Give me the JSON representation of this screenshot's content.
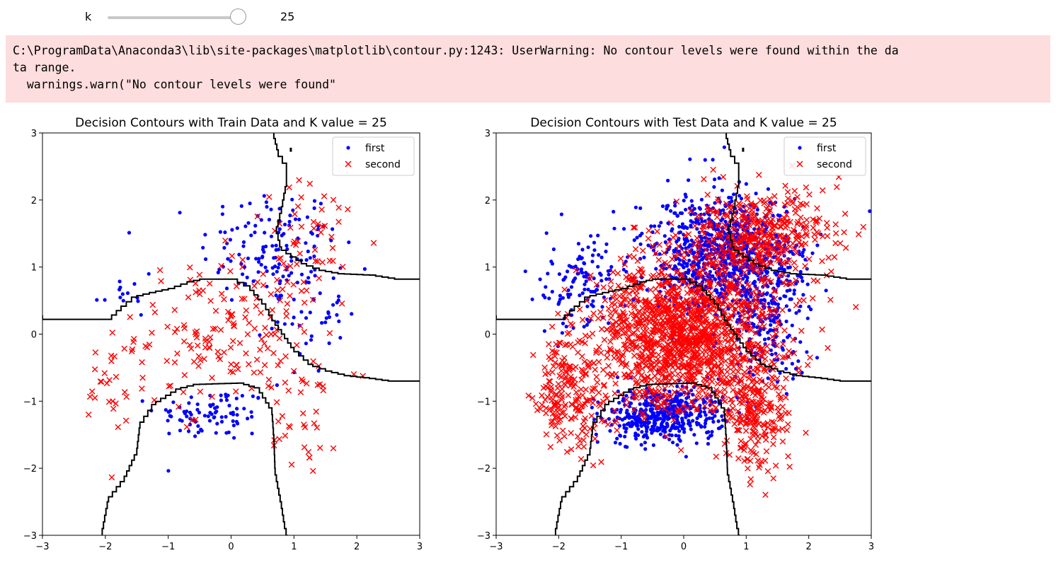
{
  "widget": {
    "label": "k",
    "value": "25",
    "slider_fraction": 1.0
  },
  "stderr": {
    "lines": [
      "C:\\ProgramData\\Anaconda3\\lib\\site-packages\\matplotlib\\contour.py:1243: UserWarning: No contour levels were found within the da",
      "ta range.",
      "  warnings.warn(\"No contour levels were found\""
    ]
  },
  "colors": {
    "first": "#0000ff",
    "second": "#ff0000",
    "contour": "#000000",
    "stderr_bg": "#fddddd"
  },
  "chart_data": [
    {
      "type": "scatter",
      "title": "Decision Contours with Train Data and K value = 25",
      "xlim": [
        -3,
        3
      ],
      "ylim": [
        -3,
        3
      ],
      "xticks": [
        "−3",
        "−2",
        "−1",
        "0",
        "1",
        "2",
        "3"
      ],
      "yticks": [
        "−3",
        "−2",
        "−1",
        "0",
        "1",
        "2",
        "3"
      ],
      "legend_position": "top-right",
      "series": [
        {
          "name": "first",
          "marker": "dot",
          "clusters": [
            {
              "cx": 0.6,
              "cy": 1.3,
              "sx": 0.55,
              "sy": 0.45,
              "n": 120
            },
            {
              "cx": -0.3,
              "cy": -1.2,
              "sx": 0.45,
              "sy": 0.2,
              "n": 85
            },
            {
              "cx": 1.2,
              "cy": 0.4,
              "sx": 0.3,
              "sy": 0.5,
              "n": 55
            },
            {
              "cx": -1.7,
              "cy": 0.6,
              "sx": 0.25,
              "sy": 0.3,
              "n": 14
            }
          ]
        },
        {
          "name": "second",
          "marker": "x",
          "clusters": [
            {
              "cx": 0.0,
              "cy": 0.0,
              "sx": 0.75,
              "sy": 0.55,
              "n": 175
            },
            {
              "cx": 1.3,
              "cy": 1.45,
              "sx": 0.55,
              "sy": 0.4,
              "n": 45
            },
            {
              "cx": -1.9,
              "cy": -0.9,
              "sx": 0.25,
              "sy": 0.45,
              "n": 25
            },
            {
              "cx": 1.2,
              "cy": -1.2,
              "sx": 0.25,
              "sy": 0.45,
              "n": 30
            }
          ]
        }
      ],
      "contours": [
        [
          [
            -3,
            0.28
          ],
          [
            -2.9,
            0.22
          ],
          [
            -1.9,
            0.22
          ],
          [
            -1.75,
            0.35
          ],
          [
            -1.5,
            0.55
          ],
          [
            -1.2,
            0.62
          ],
          [
            -0.9,
            0.68
          ],
          [
            -0.6,
            0.78
          ],
          [
            -0.4,
            0.82
          ],
          [
            0.1,
            0.82
          ],
          [
            0.3,
            0.72
          ],
          [
            0.55,
            0.45
          ],
          [
            0.7,
            0.2
          ],
          [
            0.85,
            0.0
          ],
          [
            1.0,
            -0.2
          ],
          [
            1.3,
            -0.45
          ],
          [
            1.6,
            -0.55
          ],
          [
            1.9,
            -0.62
          ],
          [
            2.2,
            -0.65
          ],
          [
            2.6,
            -0.7
          ],
          [
            3,
            -0.7
          ]
        ],
        [
          [
            -2.05,
            -3
          ],
          [
            -1.95,
            -2.5
          ],
          [
            -1.7,
            -2.2
          ],
          [
            -1.5,
            -1.8
          ],
          [
            -1.45,
            -1.4
          ],
          [
            -1.2,
            -1.05
          ],
          [
            -0.8,
            -0.82
          ],
          [
            -0.5,
            -0.75
          ],
          [
            0.2,
            -0.73
          ],
          [
            0.45,
            -0.8
          ],
          [
            0.55,
            -0.95
          ],
          [
            0.65,
            -1.1
          ],
          [
            0.68,
            -1.5
          ],
          [
            0.7,
            -2.0
          ],
          [
            0.8,
            -2.5
          ],
          [
            0.85,
            -2.8
          ],
          [
            0.9,
            -3
          ]
        ],
        [
          [
            0.68,
            3
          ],
          [
            0.75,
            2.75
          ],
          [
            0.88,
            2.55
          ],
          [
            0.88,
            2.3
          ],
          [
            0.8,
            1.9
          ],
          [
            0.72,
            1.6
          ],
          [
            0.8,
            1.3
          ],
          [
            0.95,
            1.2
          ],
          [
            1.2,
            1.05
          ],
          [
            1.5,
            0.95
          ],
          [
            1.8,
            0.9
          ],
          [
            2.3,
            0.88
          ],
          [
            2.7,
            0.82
          ],
          [
            3,
            0.82
          ]
        ],
        [
          [
            0.95,
            2.78
          ],
          [
            0.95,
            2.72
          ]
        ]
      ]
    },
    {
      "type": "scatter",
      "title": "Decision Contours with Test Data and K value = 25",
      "xlim": [
        -3,
        3
      ],
      "ylim": [
        -3,
        3
      ],
      "xticks": [
        "−3",
        "−2",
        "−1",
        "0",
        "1",
        "2",
        "3"
      ],
      "yticks": [
        "−3",
        "−2",
        "−1",
        "0",
        "1",
        "2",
        "3"
      ],
      "legend_position": "top-right",
      "series": [
        {
          "name": "first",
          "marker": "dot",
          "clusters": [
            {
              "cx": 0.55,
              "cy": 1.2,
              "sx": 0.6,
              "sy": 0.45,
              "n": 850
            },
            {
              "cx": -0.3,
              "cy": -1.2,
              "sx": 0.45,
              "sy": 0.2,
              "n": 500
            },
            {
              "cx": 1.3,
              "cy": 0.3,
              "sx": 0.35,
              "sy": 0.55,
              "n": 250
            },
            {
              "cx": -1.6,
              "cy": 0.7,
              "sx": 0.35,
              "sy": 0.35,
              "n": 120
            }
          ]
        },
        {
          "name": "second",
          "marker": "x",
          "clusters": [
            {
              "cx": 0.0,
              "cy": 0.0,
              "sx": 0.75,
              "sy": 0.55,
              "n": 1400
            },
            {
              "cx": 1.2,
              "cy": 1.45,
              "sx": 0.6,
              "sy": 0.35,
              "n": 400
            },
            {
              "cx": -1.85,
              "cy": -0.9,
              "sx": 0.25,
              "sy": 0.45,
              "n": 180
            },
            {
              "cx": 1.15,
              "cy": -1.2,
              "sx": 0.25,
              "sy": 0.45,
              "n": 220
            }
          ]
        }
      ],
      "contours": [
        [
          [
            -3,
            0.28
          ],
          [
            -2.9,
            0.22
          ],
          [
            -1.9,
            0.22
          ],
          [
            -1.75,
            0.35
          ],
          [
            -1.5,
            0.55
          ],
          [
            -1.2,
            0.62
          ],
          [
            -0.9,
            0.68
          ],
          [
            -0.6,
            0.78
          ],
          [
            -0.4,
            0.82
          ],
          [
            0.1,
            0.82
          ],
          [
            0.3,
            0.72
          ],
          [
            0.55,
            0.45
          ],
          [
            0.7,
            0.2
          ],
          [
            0.85,
            0.0
          ],
          [
            1.0,
            -0.2
          ],
          [
            1.3,
            -0.45
          ],
          [
            1.6,
            -0.55
          ],
          [
            1.9,
            -0.62
          ],
          [
            2.2,
            -0.65
          ],
          [
            2.6,
            -0.7
          ],
          [
            3,
            -0.7
          ]
        ],
        [
          [
            -2.05,
            -3
          ],
          [
            -1.95,
            -2.5
          ],
          [
            -1.7,
            -2.2
          ],
          [
            -1.5,
            -1.8
          ],
          [
            -1.45,
            -1.4
          ],
          [
            -1.2,
            -1.05
          ],
          [
            -0.8,
            -0.82
          ],
          [
            -0.5,
            -0.75
          ],
          [
            0.2,
            -0.73
          ],
          [
            0.45,
            -0.8
          ],
          [
            0.55,
            -0.95
          ],
          [
            0.65,
            -1.1
          ],
          [
            0.68,
            -1.5
          ],
          [
            0.7,
            -2.0
          ],
          [
            0.8,
            -2.5
          ],
          [
            0.85,
            -2.8
          ],
          [
            0.9,
            -3
          ]
        ],
        [
          [
            0.68,
            3
          ],
          [
            0.75,
            2.75
          ],
          [
            0.88,
            2.55
          ],
          [
            0.88,
            2.3
          ],
          [
            0.8,
            1.9
          ],
          [
            0.72,
            1.6
          ],
          [
            0.8,
            1.3
          ],
          [
            0.95,
            1.2
          ],
          [
            1.2,
            1.05
          ],
          [
            1.5,
            0.95
          ],
          [
            1.8,
            0.9
          ],
          [
            2.3,
            0.88
          ],
          [
            2.7,
            0.82
          ],
          [
            3,
            0.82
          ]
        ],
        [
          [
            0.95,
            2.78
          ],
          [
            0.95,
            2.72
          ]
        ]
      ]
    }
  ]
}
